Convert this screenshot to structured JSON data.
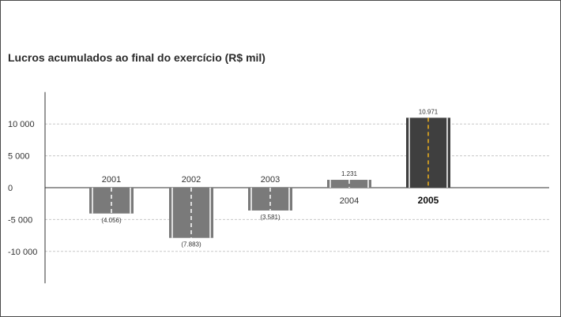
{
  "chart_data": {
    "type": "bar",
    "title": "Lucros acumulados ao final do exercício (R$ mil)",
    "xlabel": "",
    "ylabel": "",
    "ylim": [
      -15000,
      15000
    ],
    "grid": true,
    "legend": "none",
    "y_ticks": [
      {
        "value": 10000,
        "label": "10 000"
      },
      {
        "value": 5000,
        "label": "5 000"
      },
      {
        "value": 0,
        "label": "0"
      },
      {
        "value": -5000,
        "label": "-5 000"
      },
      {
        "value": -10000,
        "label": "-10 000"
      }
    ],
    "categories": [
      "2001",
      "2002",
      "2003",
      "2004",
      "2005"
    ],
    "values": [
      -4056,
      -7883,
      -3581,
      1231,
      10971
    ],
    "value_labels": [
      "(4.056)",
      "(7.883)",
      "(3.581)",
      "1.231",
      "10.971"
    ],
    "highlight_category": "2005",
    "colors": {
      "bar": "#7a7a7a",
      "bar_highlight": "#3f3f3f",
      "lane_marking": "#ffffff",
      "center_line_highlight": "#f2b31d",
      "grid": "#c8c8c8",
      "axis": "#333333",
      "text": "#333333"
    }
  }
}
